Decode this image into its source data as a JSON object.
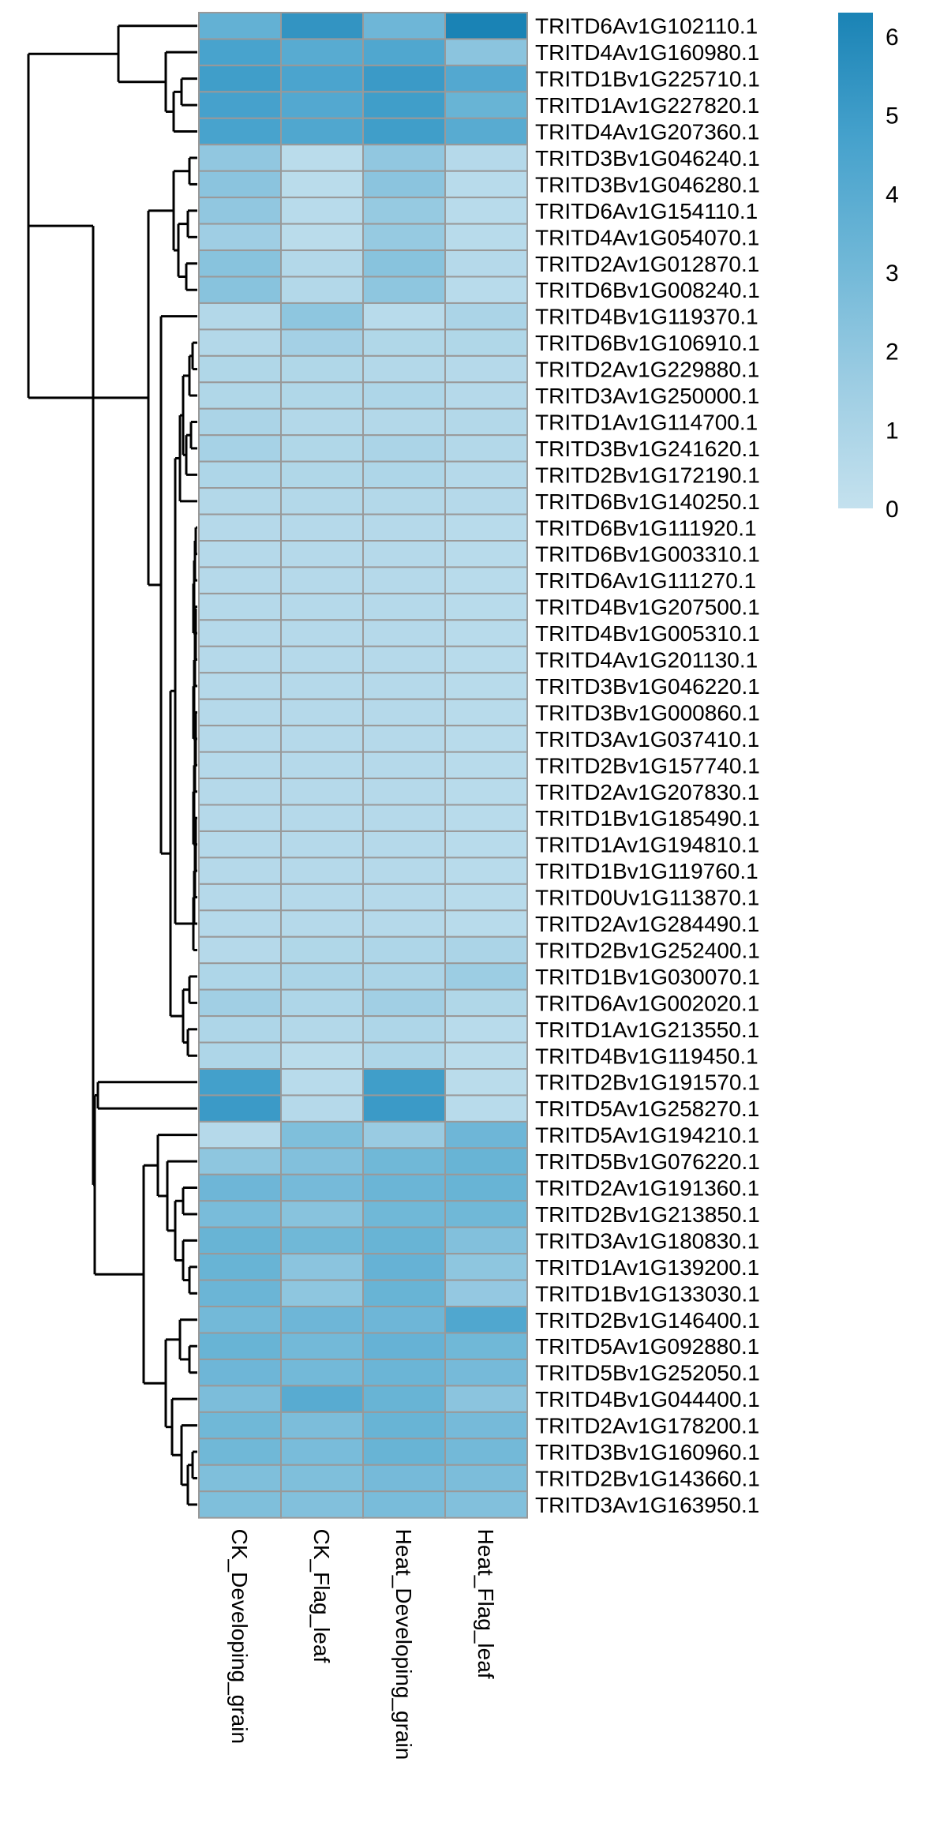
{
  "chart_data": {
    "type": "heatmap",
    "title": "",
    "xlabel": "",
    "ylabel": "",
    "columns": [
      "CK_Developing_grain",
      "CK_Flag_leaf",
      "Heat_Developing_grain",
      "Heat_Flag_leaf"
    ],
    "rows": [
      "TRITD6Av1G102110.1",
      "TRITD4Av1G160980.1",
      "TRITD1Bv1G225710.1",
      "TRITD1Av1G227820.1",
      "TRITD4Av1G207360.1",
      "TRITD3Bv1G046240.1",
      "TRITD3Bv1G046280.1",
      "TRITD6Av1G154110.1",
      "TRITD4Av1G054070.1",
      "TRITD2Av1G012870.1",
      "TRITD6Bv1G008240.1",
      "TRITD4Bv1G119370.1",
      "TRITD6Bv1G106910.1",
      "TRITD2Av1G229880.1",
      "TRITD3Av1G250000.1",
      "TRITD1Av1G114700.1",
      "TRITD3Bv1G241620.1",
      "TRITD2Bv1G172190.1",
      "TRITD6Bv1G140250.1",
      "TRITD6Bv1G111920.1",
      "TRITD6Bv1G003310.1",
      "TRITD6Av1G111270.1",
      "TRITD4Bv1G207500.1",
      "TRITD4Bv1G005310.1",
      "TRITD4Av1G201130.1",
      "TRITD3Bv1G046220.1",
      "TRITD3Bv1G000860.1",
      "TRITD3Av1G037410.1",
      "TRITD2Bv1G157740.1",
      "TRITD2Av1G207830.1",
      "TRITD1Bv1G185490.1",
      "TRITD1Av1G194810.1",
      "TRITD1Bv1G119760.1",
      "TRITD0Uv1G113870.1",
      "TRITD2Av1G284490.1",
      "TRITD2Bv1G252400.1",
      "TRITD1Bv1G030070.1",
      "TRITD6Av1G002020.1",
      "TRITD1Av1G213550.1",
      "TRITD4Bv1G119450.1",
      "TRITD2Bv1G191570.1",
      "TRITD5Av1G258270.1",
      "TRITD5Av1G194210.1",
      "TRITD5Bv1G076220.1",
      "TRITD2Av1G191360.1",
      "TRITD2Bv1G213850.1",
      "TRITD3Av1G180830.1",
      "TRITD1Av1G139200.1",
      "TRITD1Bv1G133030.1",
      "TRITD2Bv1G146400.1",
      "TRITD5Av1G092880.1",
      "TRITD5Bv1G252050.1",
      "TRITD4Bv1G044400.1",
      "TRITD2Av1G178200.1",
      "TRITD3Bv1G160960.1",
      "TRITD2Bv1G143660.1",
      "TRITD3Av1G163950.1"
    ],
    "values": [
      [
        3.6,
        5.4,
        3.2,
        6.3
      ],
      [
        4.6,
        4.0,
        4.3,
        2.2
      ],
      [
        4.9,
        4.5,
        5.1,
        4.2
      ],
      [
        4.7,
        4.2,
        4.9,
        3.4
      ],
      [
        4.6,
        4.3,
        4.9,
        4.0
      ],
      [
        2.0,
        0.4,
        2.0,
        0.6
      ],
      [
        2.2,
        0.4,
        2.2,
        0.5
      ],
      [
        2.0,
        0.5,
        1.8,
        0.5
      ],
      [
        1.5,
        0.4,
        1.8,
        0.5
      ],
      [
        2.3,
        0.7,
        2.3,
        0.6
      ],
      [
        2.3,
        0.7,
        2.1,
        0.5
      ],
      [
        0.7,
        2.1,
        0.5,
        1.0
      ],
      [
        0.7,
        1.3,
        0.8,
        0.8
      ],
      [
        0.8,
        0.8,
        0.7,
        0.6
      ],
      [
        0.8,
        0.8,
        0.9,
        0.6
      ],
      [
        1.0,
        0.7,
        0.7,
        0.7
      ],
      [
        1.2,
        0.8,
        1.0,
        0.7
      ],
      [
        0.9,
        0.8,
        0.9,
        0.6
      ],
      [
        0.7,
        0.7,
        0.7,
        0.6
      ],
      [
        0.6,
        0.6,
        0.6,
        0.5
      ],
      [
        0.6,
        0.6,
        0.6,
        0.5
      ],
      [
        0.6,
        0.6,
        0.6,
        0.5
      ],
      [
        0.6,
        0.6,
        0.6,
        0.5
      ],
      [
        0.6,
        0.6,
        0.6,
        0.5
      ],
      [
        0.6,
        0.6,
        0.6,
        0.5
      ],
      [
        0.6,
        0.6,
        0.6,
        0.5
      ],
      [
        0.6,
        0.6,
        0.6,
        0.5
      ],
      [
        0.6,
        0.6,
        0.6,
        0.5
      ],
      [
        0.6,
        0.6,
        0.6,
        0.5
      ],
      [
        0.6,
        0.6,
        0.6,
        0.5
      ],
      [
        0.6,
        0.6,
        0.6,
        0.5
      ],
      [
        0.6,
        0.6,
        0.6,
        0.5
      ],
      [
        0.6,
        0.6,
        0.6,
        0.5
      ],
      [
        0.6,
        0.6,
        0.6,
        0.5
      ],
      [
        0.6,
        0.6,
        0.6,
        0.5
      ],
      [
        0.6,
        0.8,
        0.9,
        1.0
      ],
      [
        0.9,
        1.0,
        1.0,
        1.6
      ],
      [
        1.4,
        0.9,
        1.4,
        0.8
      ],
      [
        0.9,
        0.7,
        0.9,
        0.5
      ],
      [
        0.9,
        0.4,
        0.9,
        0.4
      ],
      [
        4.8,
        0.5,
        4.9,
        0.4
      ],
      [
        5.1,
        0.6,
        5.1,
        0.5
      ],
      [
        0.6,
        2.6,
        1.7,
        3.2
      ],
      [
        2.1,
        2.5,
        3.1,
        3.4
      ],
      [
        3.2,
        2.9,
        3.3,
        3.4
      ],
      [
        2.8,
        2.3,
        3.1,
        3.1
      ],
      [
        3.4,
        3.1,
        3.4,
        2.5
      ],
      [
        3.4,
        2.2,
        3.5,
        2.1
      ],
      [
        3.3,
        2.1,
        3.4,
        1.9
      ],
      [
        3.0,
        3.2,
        3.2,
        4.3
      ],
      [
        3.4,
        3.0,
        3.5,
        3.1
      ],
      [
        3.2,
        3.0,
        3.3,
        2.9
      ],
      [
        2.7,
        4.0,
        3.4,
        2.2
      ],
      [
        3.1,
        2.7,
        3.4,
        2.9
      ],
      [
        3.1,
        2.8,
        3.4,
        3.0
      ],
      [
        2.6,
        2.6,
        2.9,
        2.7
      ],
      [
        2.6,
        2.5,
        2.8,
        2.5
      ]
    ],
    "color_scale": {
      "min": 0,
      "max": 6.3,
      "stops": [
        "#c4e1ee",
        "#9dcde3",
        "#6fb7d7",
        "#45a1cc",
        "#1a83b5"
      ],
      "ticks": [
        0,
        1,
        2,
        3,
        4,
        5,
        6
      ],
      "legend_position": "top-right"
    },
    "cell_border_color": "#999999",
    "grid": false
  }
}
